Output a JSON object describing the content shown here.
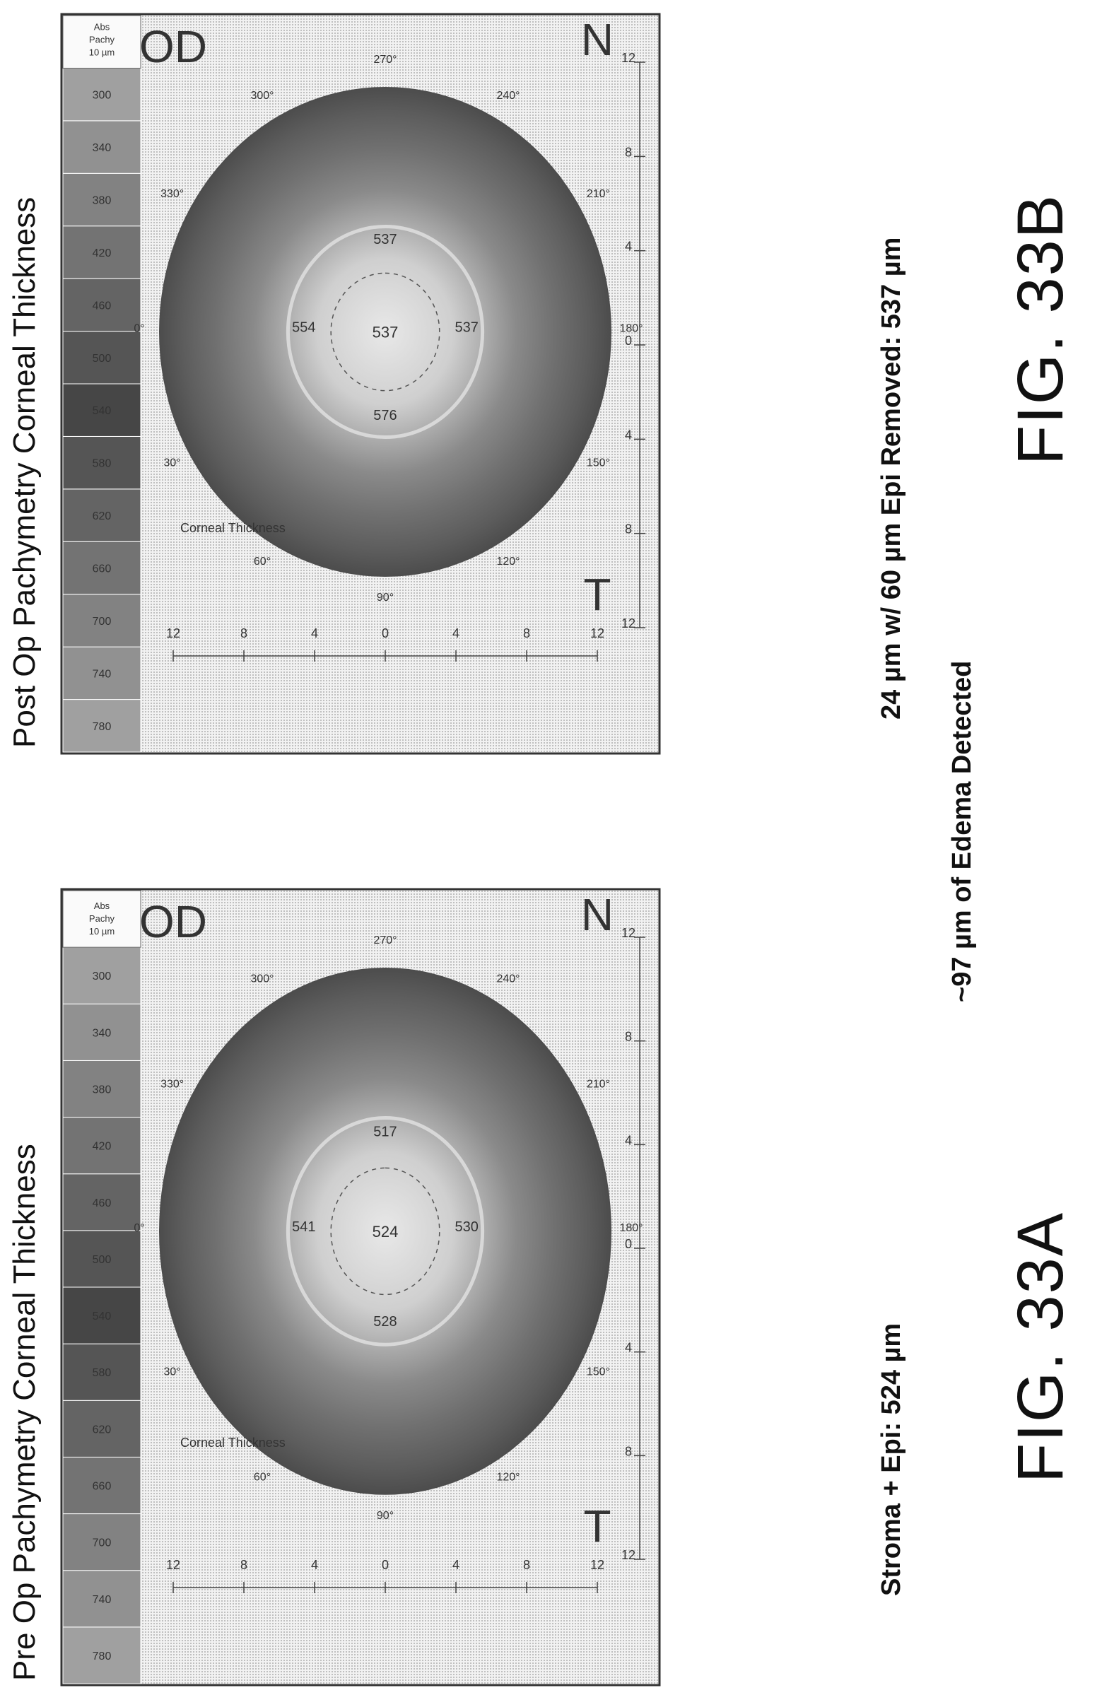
{
  "panel_a": {
    "title": "Pre Op Pachymetry Corneal Thickness",
    "map_label": "Corneal Thickness",
    "eye": "OD",
    "temporal": "T",
    "nasal": "N",
    "center_value": "524",
    "ring_values": {
      "top": "541",
      "left": "528",
      "right": "517",
      "bottom": "530"
    },
    "angles": [
      "90°",
      "60°",
      "30°",
      "0°",
      "330°",
      "300°",
      "270°",
      "240°",
      "210°",
      "180°",
      "150°",
      "120°"
    ],
    "x_ticks": [
      "12",
      "8",
      "4",
      "0",
      "4",
      "8",
      "12"
    ],
    "y_ticks": [
      "12",
      "8",
      "4",
      "0",
      "4",
      "8",
      "12"
    ],
    "scale_values": [
      "780",
      "740",
      "700",
      "660",
      "620",
      "580",
      "540",
      "500",
      "460",
      "420",
      "380",
      "340",
      "300"
    ],
    "scale_footer": [
      "10 µm",
      "Pachy",
      "Abs"
    ],
    "caption": "Stroma + Epi: 524 µm",
    "figure_label": "FIG. 33A"
  },
  "panel_b": {
    "title": "Post Op Pachymetry Corneal Thickness",
    "map_label": "Corneal Thickness",
    "eye": "OD",
    "temporal": "T",
    "nasal": "N",
    "center_value": "537",
    "ring_values": {
      "top": "554",
      "left": "576",
      "right": "537",
      "bottom": "537"
    },
    "angles": [
      "90°",
      "60°",
      "30°",
      "0°",
      "330°",
      "300°",
      "270°",
      "240°",
      "210°",
      "180°",
      "150°",
      "120°"
    ],
    "x_ticks": [
      "12",
      "8",
      "4",
      "0",
      "4",
      "8",
      "12"
    ],
    "y_ticks": [
      "12",
      "8",
      "4",
      "0",
      "4",
      "8",
      "12"
    ],
    "scale_values": [
      "780",
      "740",
      "700",
      "660",
      "620",
      "580",
      "540",
      "500",
      "460",
      "420",
      "380",
      "340",
      "300"
    ],
    "scale_footer": [
      "10 µm",
      "Pachy",
      "Abs"
    ],
    "caption": "24 µm w/ 60 µm Epi Removed: 537 µm",
    "figure_label": "FIG. 33B"
  },
  "middle_caption": "~97 µm of Edema Detected",
  "colors": {
    "ink": "#111111",
    "map_dark": "#5a5a5a",
    "map_light": "#e6e6e6",
    "frame": "#333333"
  }
}
